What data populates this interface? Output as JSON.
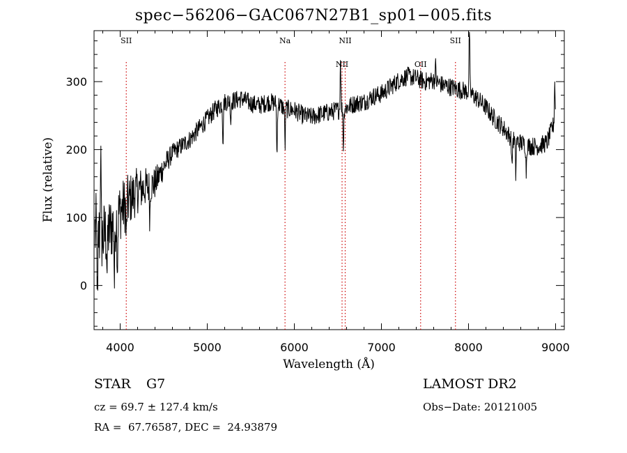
{
  "title": "spec−56206−GAC067N27B1_sp01−005.fits",
  "info": {
    "obj_class": "STAR",
    "subclass": "G7",
    "survey": "LAMOST DR2",
    "cz": "cz = 69.7 ± 127.4 km/s",
    "obs_date": "Obs−Date: 20121005",
    "radec": "RA =  67.76587, DEC =  24.93879"
  },
  "chart_data": {
    "type": "line",
    "title": "spec−56206−GAC067N27B1_sp01−005.fits",
    "xlabel": "Wavelength (Å)",
    "ylabel": "Flux (relative)",
    "xlim": [
      3700,
      9100
    ],
    "ylim": [
      -65,
      375
    ],
    "x_ticks": [
      4000,
      5000,
      6000,
      7000,
      8000,
      9000
    ],
    "y_ticks": [
      0,
      100,
      200,
      300
    ],
    "line_color": "#000000",
    "marker_color": "#cc0000",
    "spectral_lines": [
      {
        "name": "SII",
        "wavelength": 4070,
        "label_row": 0
      },
      {
        "name": "Na",
        "wavelength": 5893,
        "label_row": 0
      },
      {
        "name": "NII",
        "wavelength": 6548,
        "label_row": 1
      },
      {
        "name": "NII",
        "wavelength": 6584,
        "label_row": 0
      },
      {
        "name": "OII",
        "wavelength": 7450,
        "label_row": 1
      },
      {
        "name": "SII",
        "wavelength": 7850,
        "label_row": 0
      }
    ],
    "continuum": {
      "x": [
        3700,
        3800,
        3900,
        4000,
        4100,
        4200,
        4300,
        4400,
        4500,
        4600,
        4700,
        4800,
        4900,
        5000,
        5100,
        5200,
        5300,
        5400,
        5500,
        5600,
        5700,
        5800,
        5900,
        6000,
        6100,
        6200,
        6300,
        6400,
        6500,
        6600,
        6700,
        6800,
        6900,
        7000,
        7100,
        7200,
        7300,
        7400,
        7500,
        7600,
        7700,
        7800,
        7900,
        8000,
        8100,
        8200,
        8300,
        8400,
        8500,
        8600,
        8700,
        8800,
        8900,
        9000
      ],
      "y": [
        80,
        70,
        85,
        110,
        125,
        140,
        145,
        150,
        175,
        195,
        205,
        215,
        230,
        245,
        260,
        270,
        272,
        275,
        268,
        265,
        270,
        268,
        260,
        258,
        250,
        248,
        252,
        255,
        258,
        262,
        268,
        270,
        278,
        282,
        292,
        302,
        308,
        305,
        300,
        302,
        295,
        292,
        288,
        285,
        275,
        262,
        245,
        232,
        215,
        210,
        205,
        205,
        210,
        245
      ]
    },
    "features": [
      {
        "x": 3740,
        "dy": -120
      },
      {
        "x": 3775,
        "dy": 130
      },
      {
        "x": 3850,
        "dy": -60
      },
      {
        "x": 3934,
        "dy": -90
      },
      {
        "x": 3968,
        "dy": -70
      },
      {
        "x": 4070,
        "dy": -60
      },
      {
        "x": 4340,
        "dy": -45
      },
      {
        "x": 5180,
        "dy": -55
      },
      {
        "x": 5270,
        "dy": -30
      },
      {
        "x": 5800,
        "dy": -80
      },
      {
        "x": 5893,
        "dy": -55
      },
      {
        "x": 6530,
        "dy": 80
      },
      {
        "x": 6563,
        "dy": -55
      },
      {
        "x": 7620,
        "dy": 25
      },
      {
        "x": 8010,
        "dy": 100
      },
      {
        "x": 8498,
        "dy": -45
      },
      {
        "x": 8542,
        "dy": -50
      },
      {
        "x": 8662,
        "dy": -40
      },
      {
        "x": 8990,
        "dy": 60
      }
    ],
    "noise": {
      "blue_amplitude": 60,
      "red_amplitude": 14
    }
  }
}
